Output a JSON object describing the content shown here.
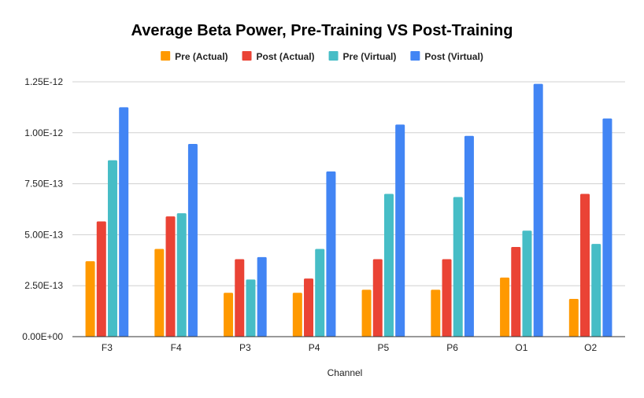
{
  "chart_data": {
    "type": "bar",
    "title": "Average Beta Power, Pre-Training VS Post-Training",
    "xlabel": "Channel",
    "ylabel": "",
    "categories": [
      "F3",
      "F4",
      "P3",
      "P4",
      "P5",
      "P6",
      "O1",
      "O2"
    ],
    "ylim": [
      0,
      1.25e-12
    ],
    "yticks": [
      0,
      2.5e-13,
      5e-13,
      7.5e-13,
      1e-12,
      1.25e-12
    ],
    "ytick_labels": [
      "0.00E+00",
      "2.50E-13",
      "5.00E-13",
      "7.50E-13",
      "1.00E-12",
      "1.25E-12"
    ],
    "grid": true,
    "legend_position": "top",
    "series": [
      {
        "name": "Pre (Actual)",
        "color": "#ff9900",
        "values": [
          3.7e-13,
          4.3e-13,
          2.15e-13,
          2.15e-13,
          2.3e-13,
          2.3e-13,
          2.9e-13,
          1.85e-13
        ]
      },
      {
        "name": "Post (Actual)",
        "color": "#ea4335",
        "values": [
          5.65e-13,
          5.9e-13,
          3.8e-13,
          2.85e-13,
          3.8e-13,
          3.8e-13,
          4.4e-13,
          7e-13
        ]
      },
      {
        "name": "Pre (Virtual)",
        "color": "#46bdc6",
        "values": [
          8.65e-13,
          6.05e-13,
          2.8e-13,
          4.3e-13,
          7e-13,
          6.85e-13,
          5.2e-13,
          4.55e-13
        ]
      },
      {
        "name": "Post (Virtual)",
        "color": "#4285f4",
        "values": [
          1.125e-12,
          9.45e-13,
          3.9e-13,
          8.1e-13,
          1.04e-12,
          9.85e-13,
          1.24e-12,
          1.07e-12
        ]
      }
    ]
  }
}
